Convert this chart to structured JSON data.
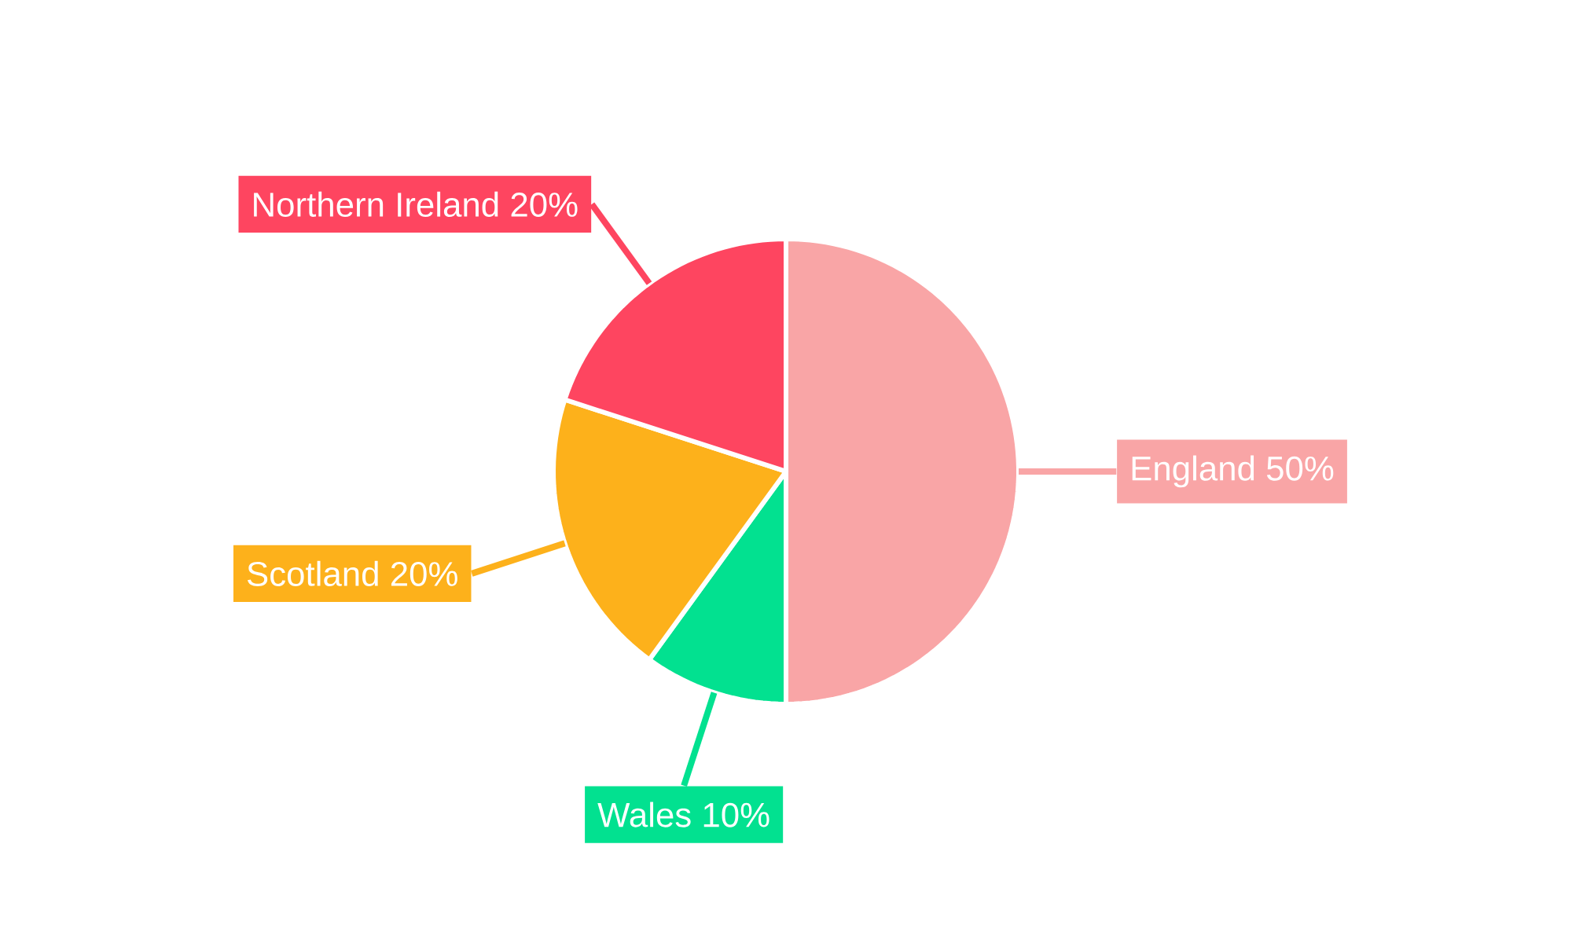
{
  "chart_data": {
    "type": "pie",
    "categories": [
      "England",
      "Wales",
      "Scotland",
      "Northern Ireland"
    ],
    "values": [
      50,
      10,
      20,
      20
    ],
    "value_labels": [
      "50%",
      "10%",
      "20%",
      "20%"
    ],
    "colors": [
      "#f9a5a6",
      "#02e190",
      "#fdb11b",
      "#fe4560"
    ]
  }
}
